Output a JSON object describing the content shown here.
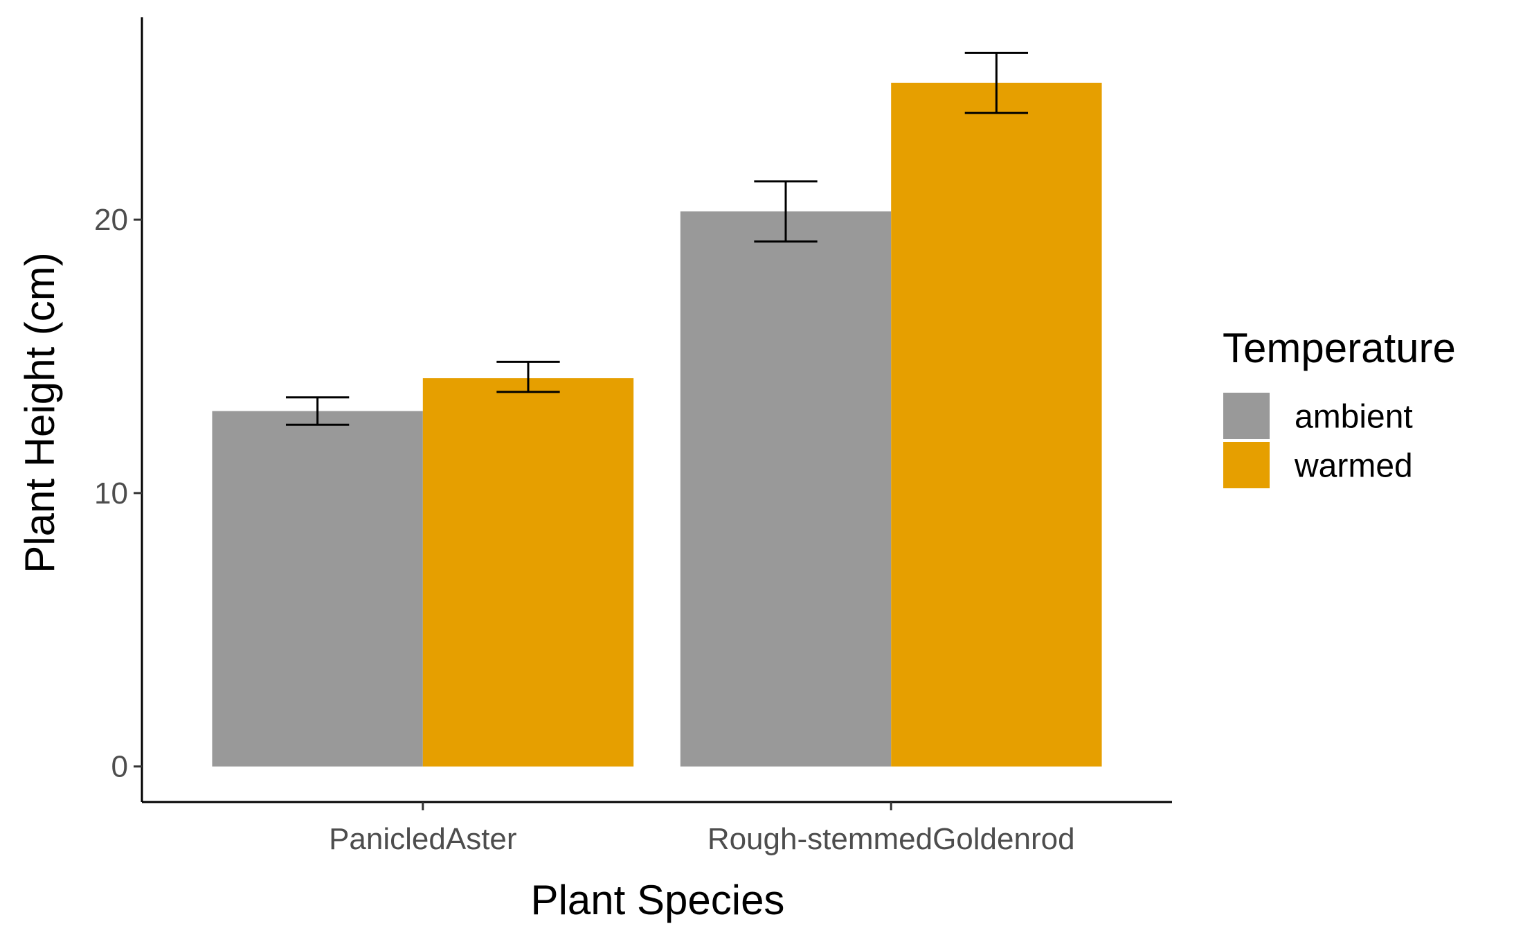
{
  "chart_data": {
    "type": "bar",
    "xlabel": "Plant Species",
    "ylabel": "Plant Height (cm)",
    "categories": [
      "PanicledAster",
      "Rough-stemmedGoldenrod"
    ],
    "series": [
      {
        "name": "ambient",
        "color": "#999999",
        "values": [
          13.0,
          20.3
        ],
        "error": [
          [
            12.5,
            13.5
          ],
          [
            19.2,
            21.4
          ]
        ]
      },
      {
        "name": "warmed",
        "color": "#E69F00",
        "values": [
          14.2,
          25.0
        ],
        "error": [
          [
            13.7,
            14.8
          ],
          [
            23.9,
            26.1
          ]
        ]
      }
    ],
    "yticks": [
      0,
      10,
      20
    ],
    "ylim": [
      -1.3,
      27.4
    ],
    "legend": {
      "title": "Temperature",
      "position": "right"
    },
    "grid": false
  }
}
